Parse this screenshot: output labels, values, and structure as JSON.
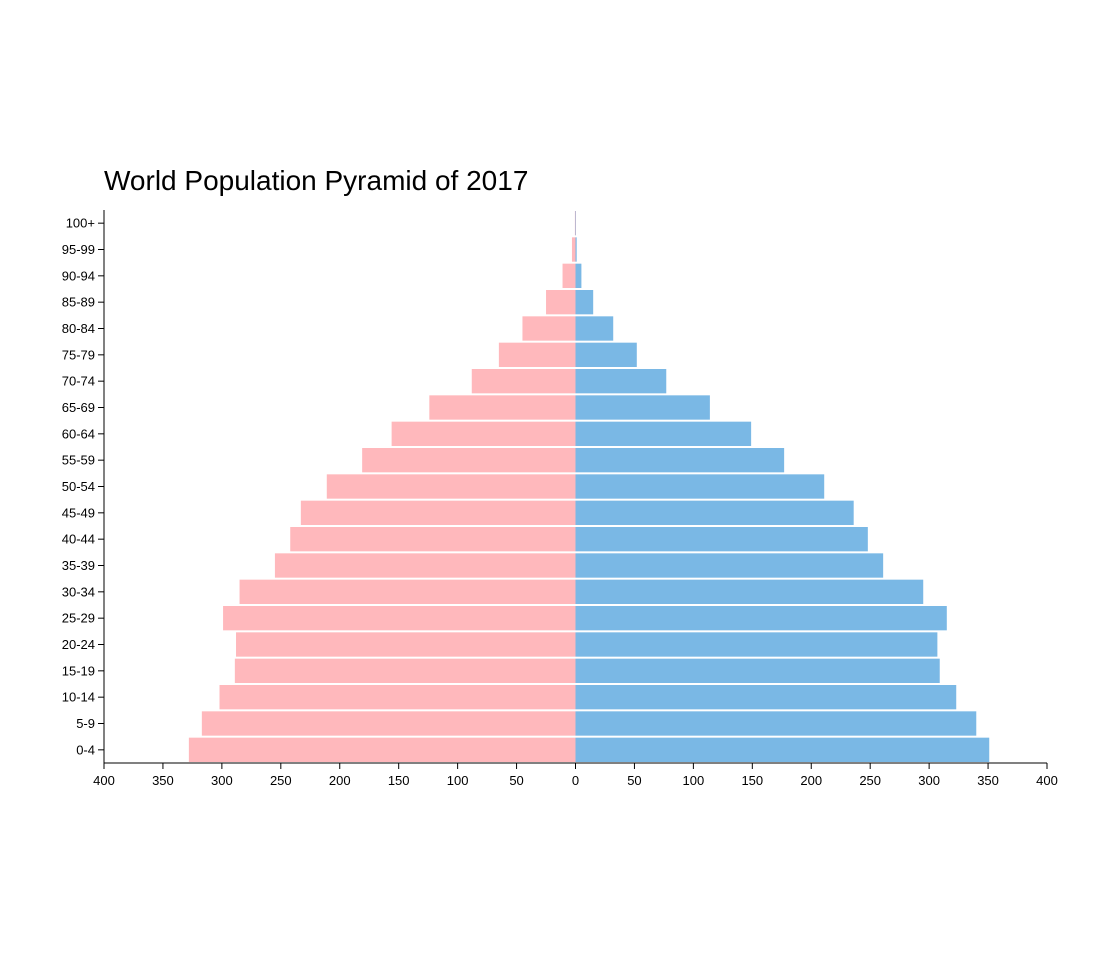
{
  "chart_data": {
    "type": "bar",
    "title": "World Population Pyramid of 2017",
    "orientation": "horizontal-diverging",
    "categories": [
      "0-4",
      "5-9",
      "10-14",
      "15-19",
      "20-24",
      "25-29",
      "30-34",
      "35-39",
      "40-44",
      "45-49",
      "50-54",
      "55-59",
      "60-64",
      "65-69",
      "70-74",
      "75-79",
      "80-84",
      "85-89",
      "90-94",
      "95-99",
      "100+"
    ],
    "series": [
      {
        "side": "left",
        "color": "#ffb8bc",
        "values": [
          328,
          317,
          302,
          289,
          288,
          299,
          285,
          255,
          242,
          233,
          211,
          181,
          156,
          124,
          88,
          65,
          45,
          25,
          11,
          3,
          0.5
        ]
      },
      {
        "side": "right",
        "color": "#7ab8e5",
        "values": [
          351,
          340,
          323,
          309,
          307,
          315,
          295,
          261,
          248,
          236,
          211,
          177,
          149,
          114,
          77,
          52,
          32,
          15,
          5,
          1,
          0.2
        ]
      }
    ],
    "xlim": [
      -400,
      400
    ],
    "x_ticks": [
      400,
      350,
      300,
      250,
      200,
      150,
      100,
      50,
      0,
      50,
      100,
      150,
      200,
      250,
      300,
      350,
      400
    ],
    "xlabel": "",
    "ylabel": "",
    "grid": false,
    "legend": "none"
  }
}
